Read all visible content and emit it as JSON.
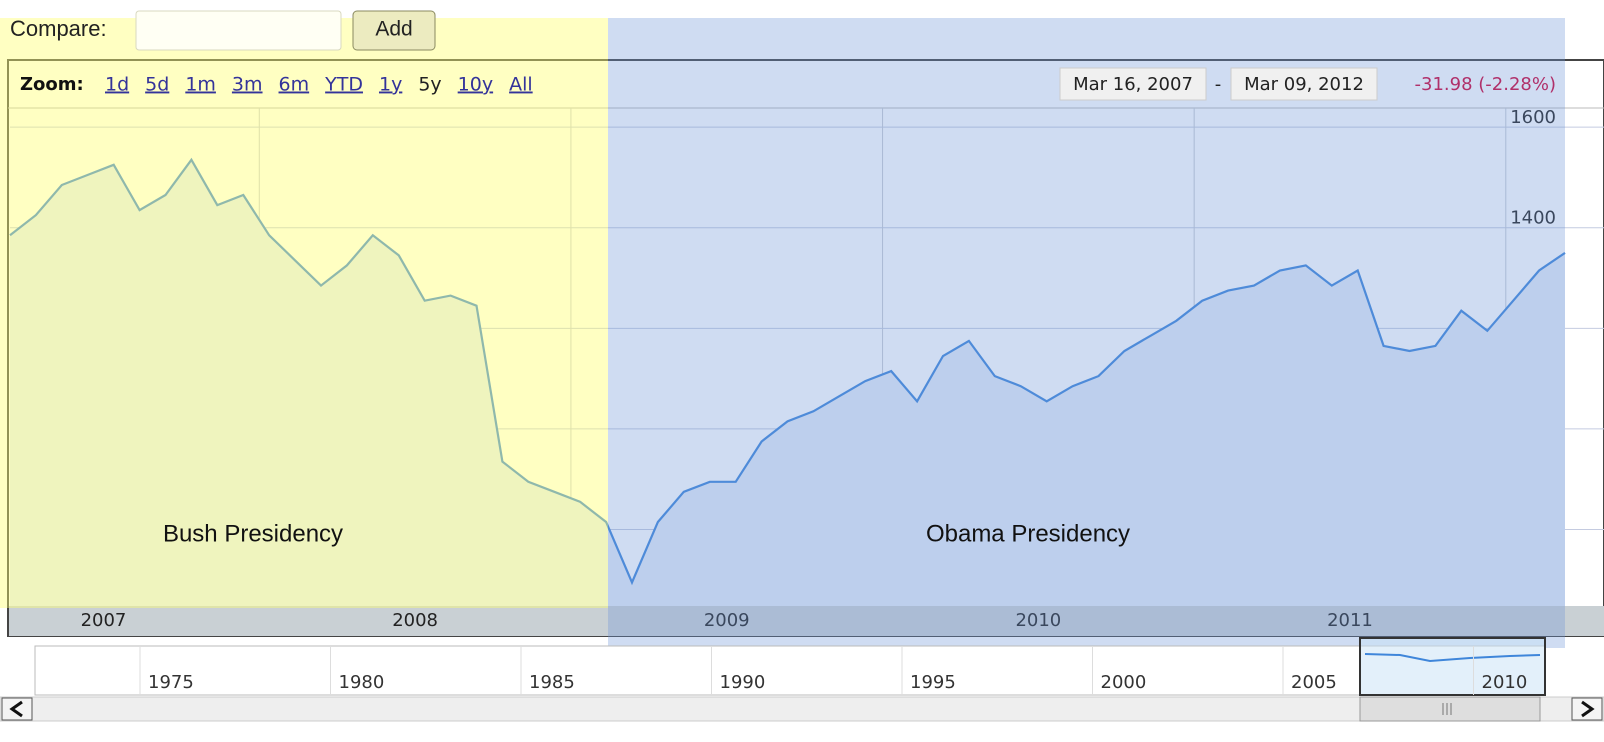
{
  "compare": {
    "label": "Compare:",
    "button": "Add"
  },
  "zoom": {
    "label": "Zoom:",
    "options": [
      "1d",
      "5d",
      "1m",
      "3m",
      "6m",
      "YTD",
      "1y",
      "5y",
      "10y",
      "All"
    ]
  },
  "range": {
    "start": "Mar 16, 2007",
    "separator": "-",
    "end": "Mar 09, 2012",
    "change": "-31.98 (-2.28%)"
  },
  "chart_data": {
    "type": "line",
    "annotations": [
      "Bush Presidency",
      "Obama  Presidency"
    ],
    "xlim": [
      2007.2,
      2012.19
    ],
    "xticks": [
      {
        "value": 2007.5,
        "label": "2007"
      },
      {
        "value": 2008.5,
        "label": "2008"
      },
      {
        "value": 2009.5,
        "label": "2009"
      },
      {
        "value": 2010.5,
        "label": "2010"
      },
      {
        "value": 2011.5,
        "label": "2011"
      }
    ],
    "ylim": [
      648,
      1638
    ],
    "yticks": [
      800,
      1000,
      1200,
      1400,
      1600
    ],
    "grid": true,
    "series": [
      {
        "color": "#3f86da",
        "values": [
          1385,
          1425,
          1485,
          1505,
          1525,
          1435,
          1465,
          1535,
          1445,
          1465,
          1385,
          1335,
          1285,
          1325,
          1385,
          1345,
          1255,
          1265,
          1245,
          935,
          895,
          875,
          855,
          815,
          695,
          815,
          875,
          895,
          895,
          975,
          1015,
          1035,
          1065,
          1095,
          1115,
          1055,
          1145,
          1175,
          1105,
          1085,
          1055,
          1085,
          1105,
          1155,
          1185,
          1215,
          1255,
          1275,
          1285,
          1315,
          1325,
          1285,
          1315,
          1165,
          1155,
          1165,
          1235,
          1195,
          1255,
          1315,
          1350
        ]
      }
    ]
  },
  "navigator": {
    "labels": [
      "1975",
      "1980",
      "1985",
      "1990",
      "1995",
      "2000",
      "2005",
      "2010"
    ]
  }
}
